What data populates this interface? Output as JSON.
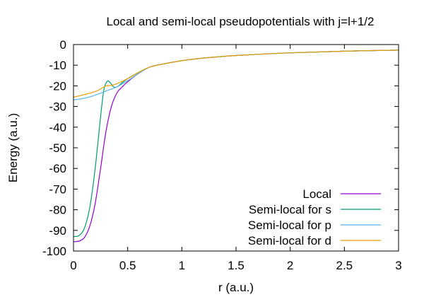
{
  "chart_data": {
    "type": "line",
    "title": "Local and semi-local pseudopotentials with j=l+1/2",
    "xlabel": "r (a.u.)",
    "ylabel": "Energy (a.u.)",
    "xlim": [
      0,
      3
    ],
    "ylim": [
      -100,
      0
    ],
    "xticks": [
      0,
      0.5,
      1,
      1.5,
      2,
      2.5,
      3
    ],
    "xtick_labels": [
      "0",
      "0.5",
      "1",
      "1.5",
      "2",
      "2.5",
      "3"
    ],
    "yticks": [
      0,
      -10,
      -20,
      -30,
      -40,
      -50,
      -60,
      -70,
      -80,
      -90,
      -100
    ],
    "ytick_labels": [
      "0",
      "-10",
      "-20",
      "-30",
      "-40",
      "-50",
      "-60",
      "-70",
      "-80",
      "-90",
      "-100"
    ],
    "grid": false,
    "legend_position": "bottom-right",
    "series": [
      {
        "name": "Local",
        "color": "#9400d3",
        "x": [
          0,
          0.05,
          0.1,
          0.15,
          0.2,
          0.25,
          0.3,
          0.35,
          0.4,
          0.45,
          0.5,
          0.6,
          0.7,
          0.8,
          1.0,
          1.25,
          1.5,
          2.0,
          2.5,
          3.0
        ],
        "y": [
          -95.5,
          -95.2,
          -93.5,
          -88,
          -77,
          -60,
          -42,
          -30,
          -23.5,
          -20.5,
          -18,
          -14,
          -11,
          -9.7,
          -7.8,
          -6.3,
          -5.3,
          -4.0,
          -3.2,
          -2.7
        ]
      },
      {
        "name": "Semi-local for s",
        "color": "#009e73",
        "x": [
          0,
          0.05,
          0.1,
          0.15,
          0.2,
          0.25,
          0.28,
          0.31,
          0.34,
          0.37,
          0.4,
          0.45,
          0.5,
          0.6,
          0.7,
          0.8,
          1.0,
          1.25,
          1.5,
          2.0,
          2.5,
          3.0
        ],
        "y": [
          -93,
          -92.5,
          -89,
          -79,
          -60,
          -35,
          -22,
          -17.8,
          -18.5,
          -20.5,
          -20.5,
          -18.5,
          -16.5,
          -13.5,
          -11,
          -9.7,
          -7.8,
          -6.3,
          -5.3,
          -4.0,
          -3.2,
          -2.7
        ]
      },
      {
        "name": "Semi-local for p",
        "color": "#56b4e9",
        "x": [
          0,
          0.1,
          0.2,
          0.3,
          0.4,
          0.5,
          0.6,
          0.7,
          0.8,
          1.0,
          1.25,
          1.5,
          2.0,
          2.5,
          3.0
        ],
        "y": [
          -26.8,
          -26,
          -24.5,
          -22.5,
          -20.5,
          -17.5,
          -14,
          -11,
          -9.7,
          -7.8,
          -6.3,
          -5.3,
          -4.0,
          -3.2,
          -2.7
        ]
      },
      {
        "name": "Semi-local for d",
        "color": "#e69f00",
        "x": [
          0,
          0.1,
          0.2,
          0.25,
          0.3,
          0.35,
          0.4,
          0.5,
          0.6,
          0.7,
          0.8,
          1.0,
          1.25,
          1.5,
          2.0,
          2.5,
          3.0
        ],
        "y": [
          -25.5,
          -24.2,
          -22.8,
          -21.5,
          -20,
          -19.8,
          -19,
          -16.5,
          -13.5,
          -11,
          -9.7,
          -7.8,
          -6.3,
          -5.3,
          -4.0,
          -3.2,
          -2.7
        ]
      }
    ]
  }
}
